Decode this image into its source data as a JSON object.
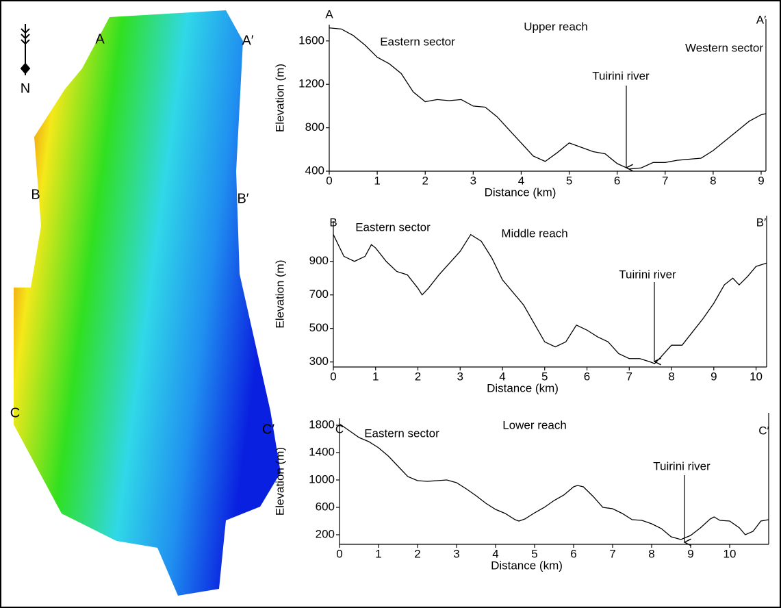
{
  "map": {
    "labels": [
      "A",
      "A′",
      "B",
      "B′",
      "C",
      "C′",
      "N"
    ]
  },
  "chart_data": [
    {
      "type": "line",
      "title": "Upper reach",
      "start_label": "A",
      "end_label": "A′",
      "annotations": [
        "Eastern sector",
        "Western sector",
        "Tuirini river"
      ],
      "xlabel": "Distance (km)",
      "ylabel": "Elevation (m)",
      "xlim": [
        0,
        9.1
      ],
      "ylim": [
        400,
        1750
      ],
      "xticks": [
        0,
        1,
        2,
        3,
        4,
        5,
        6,
        7,
        8,
        9
      ],
      "yticks": [
        400,
        800,
        1200,
        1600
      ],
      "x": [
        0,
        0.25,
        0.5,
        0.75,
        1,
        1.25,
        1.5,
        1.75,
        2,
        2.25,
        2.5,
        2.75,
        3,
        3.25,
        3.5,
        3.75,
        4,
        4.25,
        4.5,
        4.75,
        5,
        5.25,
        5.5,
        5.75,
        6,
        6.25,
        6.5,
        6.75,
        7,
        7.25,
        7.5,
        7.75,
        8,
        8.25,
        8.5,
        8.75,
        9,
        9.1
      ],
      "series": [
        {
          "color": "#000000",
          "values": [
            1720,
            1710,
            1650,
            1560,
            1450,
            1390,
            1300,
            1130,
            1040,
            1060,
            1050,
            1060,
            1000,
            990,
            900,
            780,
            660,
            540,
            490,
            570,
            660,
            620,
            580,
            560,
            470,
            420,
            430,
            480,
            480,
            500,
            510,
            520,
            590,
            680,
            770,
            860,
            920,
            930
          ]
        }
      ]
    },
    {
      "type": "line",
      "title": "Middle reach",
      "start_label": "B",
      "end_label": "B′",
      "annotations": [
        "Eastern sector",
        "Tuirini river"
      ],
      "xlabel": "Distance (km)",
      "ylabel": "Elevation (m)",
      "xlim": [
        0,
        10.25
      ],
      "ylim": [
        270,
        1140
      ],
      "xticks": [
        0,
        1,
        2,
        3,
        4,
        5,
        6,
        7,
        8,
        9,
        10
      ],
      "yticks": [
        300,
        500,
        700,
        900
      ],
      "x": [
        0,
        0.25,
        0.5,
        0.75,
        0.9,
        1,
        1.25,
        1.5,
        1.75,
        2,
        2.1,
        2.25,
        2.5,
        2.75,
        3,
        3.25,
        3.5,
        3.75,
        4,
        4.5,
        5,
        5.25,
        5.5,
        5.75,
        6,
        6.25,
        6.5,
        6.75,
        7,
        7.25,
        7.5,
        7.6,
        7.75,
        8,
        8.25,
        8.5,
        8.75,
        9,
        9.25,
        9.45,
        9.6,
        9.8,
        10,
        10.25
      ],
      "series": [
        {
          "color": "#000000",
          "values": [
            1060,
            930,
            900,
            930,
            1000,
            980,
            900,
            840,
            820,
            740,
            700,
            740,
            820,
            890,
            960,
            1060,
            1020,
            920,
            790,
            640,
            420,
            390,
            420,
            520,
            490,
            450,
            420,
            350,
            320,
            320,
            300,
            290,
            330,
            400,
            400,
            480,
            560,
            650,
            760,
            800,
            760,
            810,
            870,
            890
          ]
        }
      ]
    },
    {
      "type": "line",
      "title": "Lower reach",
      "start_label": "C",
      "end_label": "C′",
      "annotations": [
        "Eastern sector",
        "Tuirini river"
      ],
      "xlabel": "Distance (km)",
      "ylabel": "Elevation (m)",
      "xlim": [
        0,
        11
      ],
      "ylim": [
        60,
        1900
      ],
      "xticks": [
        0,
        1,
        2,
        3,
        4,
        5,
        6,
        7,
        8,
        9,
        10
      ],
      "yticks": [
        200,
        600,
        1000,
        1400,
        1800
      ],
      "x": [
        0,
        0.25,
        0.5,
        0.75,
        1,
        1.25,
        1.5,
        1.75,
        2,
        2.25,
        2.5,
        2.75,
        3,
        3.25,
        3.5,
        3.75,
        4,
        4.25,
        4.5,
        4.6,
        4.75,
        5,
        5.25,
        5.5,
        5.75,
        6,
        6.1,
        6.25,
        6.5,
        6.75,
        7,
        7.25,
        7.5,
        7.75,
        8,
        8.25,
        8.5,
        8.75,
        9,
        9.25,
        9.5,
        9.6,
        9.75,
        10,
        10.25,
        10.4,
        10.6,
        10.8,
        11
      ],
      "series": [
        {
          "color": "#000000",
          "values": [
            1820,
            1720,
            1620,
            1560,
            1470,
            1350,
            1200,
            1050,
            990,
            980,
            990,
            1000,
            960,
            870,
            770,
            660,
            570,
            510,
            420,
            400,
            430,
            520,
            600,
            700,
            780,
            900,
            920,
            900,
            760,
            600,
            580,
            510,
            420,
            410,
            360,
            290,
            170,
            130,
            190,
            300,
            430,
            460,
            410,
            400,
            300,
            200,
            250,
            400,
            420
          ]
        }
      ]
    }
  ]
}
